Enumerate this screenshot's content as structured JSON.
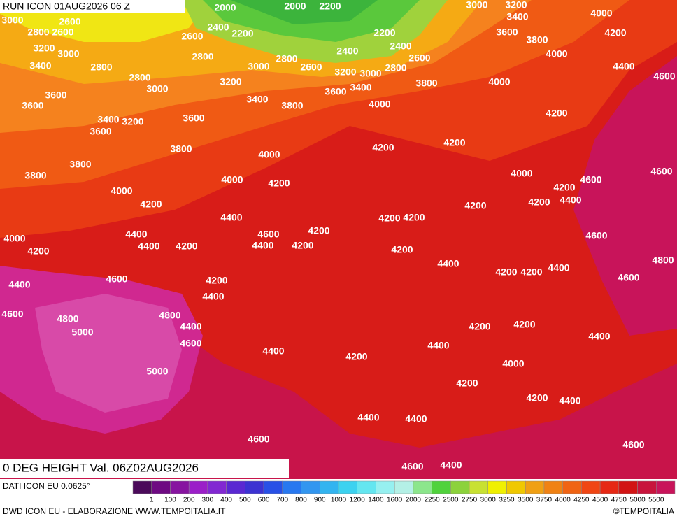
{
  "header": {
    "title": "RUN ICON 01AUG2026 06 Z"
  },
  "map": {
    "caption": "0 DEG HEIGHT Val. 06Z02AUG2026",
    "contour_labels": [
      3000,
      2600,
      2800,
      2600,
      2000,
      2000,
      2200,
      3000,
      3200,
      3400,
      4000,
      2400,
      2200,
      2200,
      2600,
      3600,
      4200,
      3200,
      3000,
      2800,
      2400,
      2400,
      3800,
      4000,
      2800,
      2600,
      3400,
      2800,
      3000,
      2600,
      3200,
      3000,
      2800,
      4400,
      2800,
      4600,
      3000,
      3200,
      3800,
      4000,
      3400,
      3600,
      3600,
      3400,
      3800,
      4000,
      3600,
      4200,
      3400,
      3200,
      3600,
      3600,
      3800,
      4200,
      4200,
      4000,
      3800,
      4000,
      4600,
      3800,
      4000,
      4200,
      4600,
      4200,
      4000,
      4200,
      4400,
      4200,
      4200,
      4400,
      4200,
      4200,
      4200,
      4600,
      4400,
      4600,
      4000,
      4400,
      4200,
      4400,
      4200,
      4200,
      4200,
      4400,
      4800,
      4200,
      4200,
      4400,
      4600,
      4200,
      4400,
      4600,
      4400,
      4600,
      4800,
      4800,
      4200,
      4200,
      4400,
      5000,
      4400,
      4600,
      4400,
      4400,
      4200,
      4000,
      5000,
      4200,
      4200,
      4400,
      4400,
      4400,
      4600,
      4600,
      4600,
      4400
    ]
  },
  "legend": {
    "labels": [
      1,
      100,
      200,
      300,
      400,
      500,
      600,
      700,
      800,
      900,
      1000,
      1200,
      1400,
      1600,
      2000,
      2250,
      2500,
      2750,
      3000,
      3250,
      3500,
      3750,
      4000,
      4250,
      4500,
      4750,
      5000,
      5500
    ],
    "colors": [
      "#4b0a5a",
      "#6e0a82",
      "#8714a0",
      "#9b1ec8",
      "#8228d2",
      "#5a28d2",
      "#3c32d2",
      "#2850e6",
      "#2878f0",
      "#3296f0",
      "#32b4f0",
      "#3cd2f0",
      "#64e6f0",
      "#96f0f0",
      "#b4f0e6",
      "#8ce68c",
      "#50d23c",
      "#8cd23c",
      "#c8e132",
      "#f0f000",
      "#f0c800",
      "#f0a014",
      "#f08214",
      "#f06414",
      "#f04614",
      "#e62814",
      "#d21414",
      "#c8143c",
      "#c8145a"
    ]
  },
  "footer": {
    "data_source": "DATI ICON EU 0.0625°",
    "credit": "DWD ICON EU - ELABORAZIONE WWW.TEMPOITALIA.IT",
    "copyright": "©TEMPOITALIA"
  }
}
